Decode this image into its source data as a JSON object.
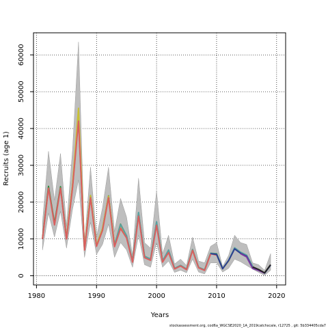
{
  "chart_data": {
    "type": "line",
    "xlabel": "Years",
    "ylabel": "Recruits (age 1)",
    "xlim": [
      1979.5,
      2021.5
    ],
    "ylim": [
      -2500,
      66000
    ],
    "x_ticks": [
      1980,
      1990,
      2000,
      2010,
      2020
    ],
    "y_ticks": [
      0,
      10000,
      20000,
      30000,
      40000,
      50000,
      60000
    ],
    "grid": true,
    "grid_style": "dotted",
    "footer": "stockassessment.org, cod6a_WGCSE2020_1A_2019catchscale, r12725 , git: 5b334405cda7",
    "band": {
      "name": "confidence interval",
      "color": "#bebebe",
      "x": [
        1981,
        1982,
        1983,
        1984,
        1985,
        1986,
        1987,
        1988,
        1989,
        1990,
        1991,
        1992,
        1993,
        1994,
        1995,
        1996,
        1997,
        1998,
        1999,
        2000,
        2001,
        2002,
        2003,
        2004,
        2005,
        2006,
        2007,
        2008,
        2009,
        2010,
        2011,
        2012,
        2013,
        2014,
        2015,
        2016,
        2017,
        2018,
        2019
      ],
      "lower": [
        7000,
        17000,
        10500,
        17500,
        7500,
        18000,
        26000,
        5000,
        14500,
        5800,
        8500,
        14000,
        5000,
        9000,
        7000,
        2300,
        11000,
        3000,
        2300,
        9000,
        2300,
        4000,
        900,
        1500,
        800,
        4500,
        1000,
        500,
        3500,
        3500,
        1000,
        2000,
        4500,
        3800,
        2800,
        1800,
        900,
        100,
        1500
      ],
      "upper": [
        14500,
        33800,
        20500,
        33200,
        13500,
        34000,
        63500,
        9000,
        29500,
        10500,
        18500,
        29500,
        12000,
        21000,
        16000,
        5500,
        26500,
        9000,
        7500,
        23000,
        6000,
        11000,
        3200,
        4500,
        2800,
        10500,
        4000,
        3500,
        8000,
        9000,
        2500,
        5500,
        11000,
        9000,
        8500,
        3500,
        3000,
        1500,
        6000
      ]
    },
    "series": [
      {
        "color": "#d95f5f",
        "x": [
          1981,
          1982,
          1983,
          1984,
          1985,
          1986,
          1987,
          1988,
          1989,
          1990,
          1991,
          1992,
          1993,
          1994,
          1995,
          1996,
          1997,
          1998,
          1999,
          2000,
          2001,
          2002,
          2003,
          2004,
          2005,
          2006,
          2007,
          2008,
          2009,
          2010
        ],
        "values": [
          10000,
          24000,
          14000,
          24000,
          10000,
          24000,
          43000,
          7000,
          21500,
          8000,
          12500,
          21500,
          8000,
          13000,
          10500,
          3800,
          16500,
          5000,
          4300,
          14000,
          3800,
          6500,
          1900,
          2700,
          1700,
          7000,
          2200,
          1500,
          6000,
          5600
        ]
      },
      {
        "color": "#2f8f3f",
        "x": [
          1981,
          1982,
          1983,
          1984,
          1985,
          1986,
          1987,
          1988,
          1989,
          1990,
          1991,
          1992,
          1993,
          1994,
          1995,
          1996,
          1997,
          1998,
          1999,
          2000,
          2001,
          2002,
          2003,
          2004,
          2005,
          2006,
          2007,
          2008,
          2009,
          2010,
          2011
        ],
        "values": [
          10200,
          24300,
          14200,
          24200,
          10200,
          24300,
          43500,
          7200,
          21800,
          8200,
          12800,
          21700,
          8300,
          14000,
          10800,
          4000,
          17000,
          5300,
          4500,
          14500,
          4000,
          6800,
          2000,
          2800,
          1800,
          7100,
          2300,
          1600,
          6100,
          6000,
          2000
        ]
      },
      {
        "color": "#c8c035",
        "x": [
          1985,
          1986,
          1987,
          1988,
          1989,
          1990,
          1991,
          1992,
          1993,
          1994,
          1995,
          1996,
          1997,
          1998,
          1999,
          2000,
          2001,
          2002,
          2003,
          2004,
          2005,
          2006,
          2007,
          2008,
          2009,
          2010,
          2011,
          2012,
          2013
        ],
        "values": [
          10300,
          24500,
          45500,
          7300,
          21800,
          8200,
          12800,
          21600,
          8200,
          13800,
          10700,
          3900,
          16800,
          5200,
          4400,
          14200,
          3900,
          6600,
          1950,
          2750,
          1750,
          7050,
          2250,
          1550,
          6050,
          5800,
          1900,
          4000,
          7500
        ]
      },
      {
        "color": "#5aa0a0",
        "x": [
          1993,
          1994,
          1995,
          1996,
          1997,
          1998,
          1999,
          2000,
          2001,
          2002,
          2003,
          2004,
          2005,
          2006,
          2007,
          2008,
          2009,
          2010,
          2011,
          2012,
          2013,
          2014,
          2015,
          2016
        ],
        "values": [
          8300,
          13900,
          10900,
          4000,
          17200,
          5300,
          4500,
          14700,
          4000,
          7000,
          2000,
          2800,
          1800,
          7100,
          2300,
          1600,
          6100,
          5900,
          1900,
          4200,
          7600,
          6400,
          5600,
          2600
        ]
      },
      {
        "color": "#2c3e8f",
        "x": [
          2009,
          2010,
          2011,
          2012,
          2013,
          2014,
          2015,
          2016,
          2017,
          2018,
          2019
        ],
        "values": [
          6000,
          5800,
          1900,
          4100,
          7300,
          6100,
          5300,
          2100,
          1500,
          700,
          2900
        ]
      },
      {
        "color": "#7a3aa0",
        "x": [
          2014,
          2015,
          2016,
          2017,
          2018
        ],
        "values": [
          6000,
          5100,
          2000,
          1400,
          700
        ]
      },
      {
        "color": "#222222",
        "x": [
          2016,
          2017,
          2018,
          2019
        ],
        "values": [
          2400,
          1700,
          800,
          3000
        ]
      },
      {
        "color": "#d95f5f",
        "x": [
          1981,
          1982,
          1983,
          1984,
          1985,
          1986,
          1987,
          1988,
          1989,
          1990,
          1991,
          1992,
          1993,
          1994,
          1995,
          1996,
          1997,
          1998,
          1999,
          2000,
          2001,
          2002,
          2003,
          2004,
          2005,
          2006,
          2007,
          2008,
          2009
        ],
        "values": [
          10000,
          23800,
          13800,
          23800,
          10000,
          23800,
          42000,
          7000,
          21200,
          8000,
          12300,
          21200,
          7900,
          12800,
          10300,
          3700,
          16200,
          4900,
          4200,
          13700,
          3700,
          6300,
          1850,
          2650,
          1650,
          6900,
          2150,
          1450,
          5900
        ]
      }
    ]
  }
}
